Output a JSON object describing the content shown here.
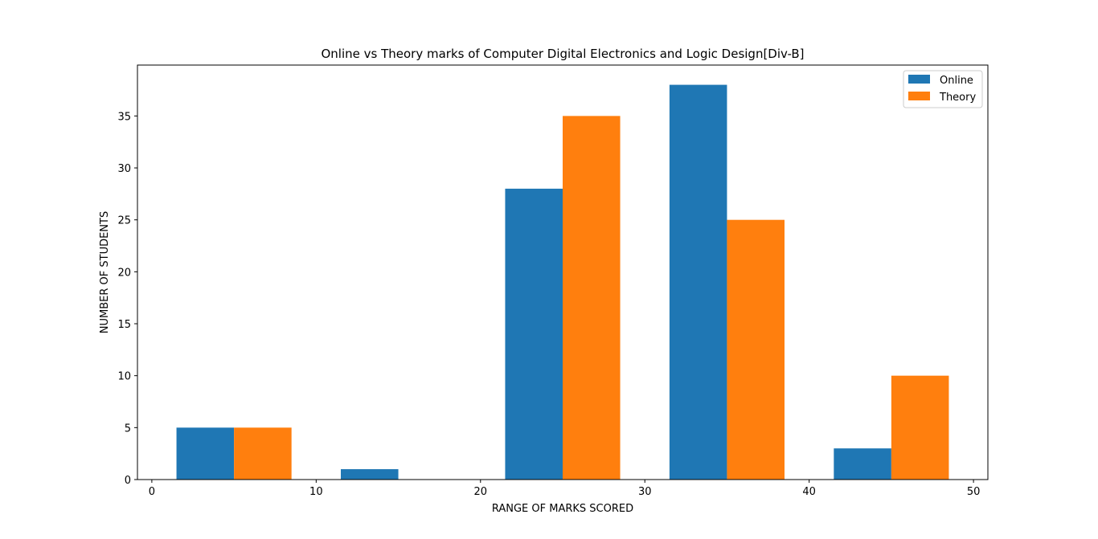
{
  "chart_data": {
    "type": "bar",
    "title": "Online vs Theory marks of Computer Digital Electronics and Logic Design[Div-B]",
    "xlabel": "RANGE OF MARKS SCORED",
    "ylabel": "NUMBER OF STUDENTS",
    "bin_centers": [
      5,
      15,
      25,
      35,
      45
    ],
    "bar_width": 3.5,
    "series": [
      {
        "name": "Online",
        "color": "#1f77b4",
        "offset": -1.75,
        "values": [
          5,
          1,
          28,
          38,
          3
        ]
      },
      {
        "name": "Theory",
        "color": "#ff7f0e",
        "offset": 1.75,
        "values": [
          5,
          0,
          35,
          25,
          10
        ]
      }
    ],
    "xlim": [
      -0.875,
      50.875
    ],
    "ylim": [
      0,
      39.9
    ],
    "xticks": [
      0,
      10,
      20,
      30,
      40,
      50
    ],
    "yticks": [
      0,
      5,
      10,
      15,
      20,
      25,
      30,
      35
    ],
    "legend": "top-right",
    "grid": false
  }
}
